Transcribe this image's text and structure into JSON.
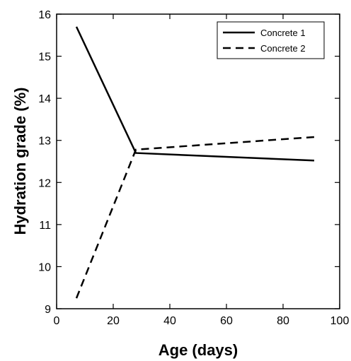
{
  "chart_data": {
    "type": "line",
    "xlabel": "Age (days)",
    "ylabel": "Hydration grade (%)",
    "xlim": [
      0,
      100
    ],
    "ylim": [
      9,
      16
    ],
    "xticks": [
      0,
      20,
      40,
      60,
      80,
      100
    ],
    "yticks": [
      9,
      10,
      11,
      12,
      13,
      14,
      15,
      16
    ],
    "grid": false,
    "legend_position": "top-right",
    "series": [
      {
        "name": "Concrete 1",
        "style": "solid",
        "color": "#000000",
        "x": [
          7,
          28,
          91
        ],
        "y": [
          15.7,
          12.7,
          12.52
        ]
      },
      {
        "name": "Concrete 2",
        "style": "dashed",
        "color": "#000000",
        "x": [
          7,
          28,
          91
        ],
        "y": [
          9.25,
          12.78,
          13.08
        ]
      }
    ]
  }
}
